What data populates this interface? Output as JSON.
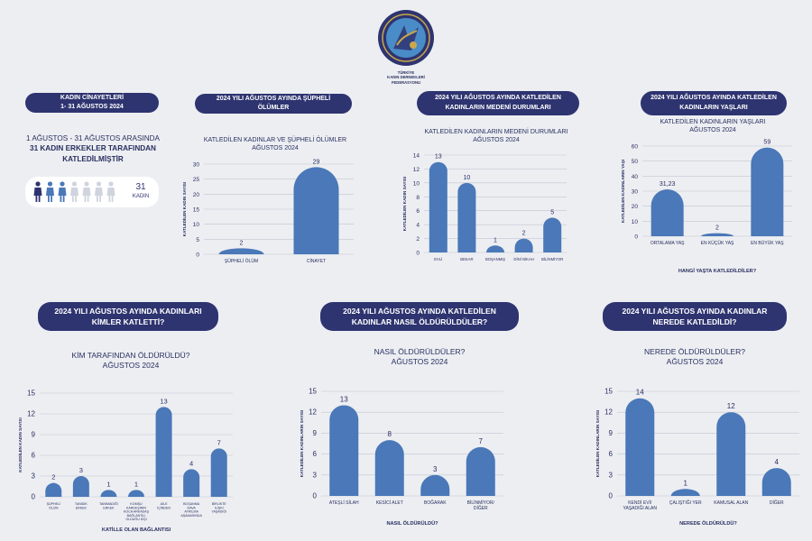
{
  "logo": {
    "label": "TÜRKİYE KADIN DERNEKLERİ FEDERASYONU",
    "lines": [
      "TÜRKİYE",
      "KADIN DERNEKLERİ",
      "FEDERASYONU"
    ]
  },
  "summary": {
    "header": "KADIN CİNAYETLERİ",
    "header_dates": "1- 31 AĞUSTOS 2024",
    "line1": "1 AĞUSTOS - 31 AĞUSTOS ARASINDA",
    "line2": "31 KADIN ERKEKLER TARAFINDAN",
    "line3": "KATLEDİLMİŞTİR",
    "count": "31",
    "count_label": "KADIN",
    "colors": {
      "dark": "#2e3470",
      "mid": "#4a78b8",
      "light": "#cfd4de"
    }
  },
  "panels": {
    "p1": {
      "header": "2024 YILI AĞUSTOS AYINDA ŞÜPHELİ ÖLÜMLER",
      "title_lines": [
        "KATLEDİLEN KADINLAR VE ŞÜPHELİ ÖLÜMLER",
        "AĞUSTOS 2024"
      ]
    },
    "p2": {
      "header_lines": [
        "2024 YILI AĞUSTOS AYINDA KATLEDİLEN",
        "KADINLARIN MEDENİ DURUMLARI"
      ],
      "title_lines": [
        "KATLEDİLEN KADINLARIN MEDENİ DURUMLARI",
        "AĞUSTOS 2024"
      ]
    },
    "p3": {
      "header_lines": [
        "2024 YILI AĞUSTOS AYINDA KATLEDİLEN",
        "KADINLARIN YAŞLARI"
      ],
      "title_lines": [
        "KATLEDİLEN KADINLARIN YAŞLARI",
        "AĞUSTOS 2024"
      ]
    },
    "p4": {
      "header_lines": [
        "2024 YILI AĞUSTOS AYINDA KADINLARI",
        "KİMLER KATLETTİ?"
      ],
      "title_lines": [
        "KİM TARAFINDAN ÖLDÜRÜLDÜ?",
        "AĞUSTOS 2024"
      ]
    },
    "p5": {
      "header_lines": [
        "2024 YILI AĞUSTOS AYINDA KATLEDİLEN",
        "KADINLAR NASIL ÖLDÜRÜLDÜLER?"
      ],
      "title_lines": [
        "NASIL ÖLDÜRÜLDÜLER?",
        "AĞUSTOS 2024"
      ]
    },
    "p6": {
      "header_lines": [
        "2024 YILI AĞUSTOS AYINDA KADINLAR",
        "NEREDE KATLEDİLDİ?"
      ],
      "title_lines": [
        "NEREDE ÖLDÜRÜLDÜLER?",
        "AĞUSTOS 2024"
      ]
    }
  },
  "chart_data": [
    {
      "id": "c1",
      "type": "bar",
      "bar_color": "#4a78b8",
      "categories": [
        [
          "ŞÜPHELİ ÖLÜM"
        ],
        [
          "CİNAYET"
        ]
      ],
      "values": [
        2,
        29
      ],
      "ylim": [
        0,
        30
      ],
      "yticks": [
        0,
        5,
        10,
        15,
        20,
        25,
        30
      ],
      "ylabel": "KATLEDİLEN KADIN SAYISI",
      "xlabel": "",
      "grid": true
    },
    {
      "id": "c2",
      "type": "bar",
      "bar_color": "#4a78b8",
      "categories": [
        [
          "EVLİ"
        ],
        [
          "BEKAR"
        ],
        [
          "BOŞANMIŞ"
        ],
        [
          "DİNİ NİKAH"
        ],
        [
          "BİLİNMİYOR"
        ]
      ],
      "values": [
        13,
        10,
        1,
        2,
        5
      ],
      "ylim": [
        0,
        14
      ],
      "yticks": [
        0,
        2,
        4,
        6,
        8,
        10,
        12,
        14
      ],
      "ylabel": "KATLEDİLEN KADIN SAYISI",
      "xlabel": "",
      "grid": true
    },
    {
      "id": "c3",
      "type": "bar",
      "bar_color": "#4a78b8",
      "categories": [
        [
          "ORTALAMA YAŞ"
        ],
        [
          "EN KÜÇÜK YAŞ"
        ],
        [
          "EN BÜYÜK YAŞ"
        ]
      ],
      "values": [
        31.23,
        2,
        59
      ],
      "value_labels": [
        "31,23",
        "2",
        "59"
      ],
      "ylim": [
        0,
        60
      ],
      "yticks": [
        0,
        10,
        20,
        30,
        40,
        50,
        60
      ],
      "ylabel": "KATLEDİLEN KADINLARIN YAŞI",
      "xlabel": "HANGİ YAŞTA KATLEDİLDİLER?",
      "grid": true
    },
    {
      "id": "c4",
      "type": "bar",
      "bar_color": "#4a78b8",
      "categories": [
        [
          "ŞÜPHELİ",
          "ÖLÜM"
        ],
        [
          "TANIDIK",
          "ERKEK"
        ],
        [
          "TANIMADIĞI",
          "ERKEK"
        ],
        [
          "KOMŞU",
          "KARDEŞİNİN",
          "KOCA ARKADAŞ",
          "BAĞLANTILI",
          "OLDUĞU KİŞİ"
        ],
        [
          "AİLE",
          "İÇİNDEN"
        ],
        [
          "BOŞANMA",
          "DAVA",
          "AYRILMA",
          "AŞAMASINDA"
        ],
        [
          "BİRLİKTE",
          "İLİŞKİ",
          "YAŞADIĞI"
        ]
      ],
      "values": [
        2,
        3,
        1,
        1,
        13,
        4,
        7
      ],
      "ylim": [
        0,
        15
      ],
      "yticks": [
        0,
        3,
        6,
        9,
        12,
        15
      ],
      "ylabel": "KATLEDİLEN KADIN SAYISI",
      "xlabel": "KATİLLE OLAN BAĞLANTISI",
      "grid": true
    },
    {
      "id": "c5",
      "type": "bar",
      "bar_color": "#4a78b8",
      "categories": [
        [
          "ATEŞLİ SİLAH"
        ],
        [
          "KESİCİ ALET"
        ],
        [
          "BOĞARAK"
        ],
        [
          "BİLİNMİYOR/",
          "DİĞER"
        ]
      ],
      "values": [
        13,
        8,
        3,
        7
      ],
      "ylim": [
        0,
        15
      ],
      "yticks": [
        0,
        3,
        6,
        9,
        12,
        15
      ],
      "ylabel": "KATLEDİLEN KADINLARIN SAYISI",
      "xlabel": "NASIL ÖLDÜRÜLDÜ?",
      "grid": true
    },
    {
      "id": "c6",
      "type": "bar",
      "bar_color": "#4a78b8",
      "categories": [
        [
          "KENDİ EVİ/",
          "YAŞADIĞI ALAN"
        ],
        [
          "ÇALIŞTIĞI YER"
        ],
        [
          "KAMUSAL ALAN"
        ],
        [
          "DİĞER"
        ]
      ],
      "values": [
        14,
        1,
        12,
        4
      ],
      "ylim": [
        0,
        15
      ],
      "yticks": [
        0,
        3,
        6,
        9,
        12,
        15
      ],
      "ylabel": "KATLEDİLEN KADINLARIN SAYISI",
      "xlabel": "NEREDE ÖLDÜRÜLDÜ?",
      "grid": true
    }
  ]
}
